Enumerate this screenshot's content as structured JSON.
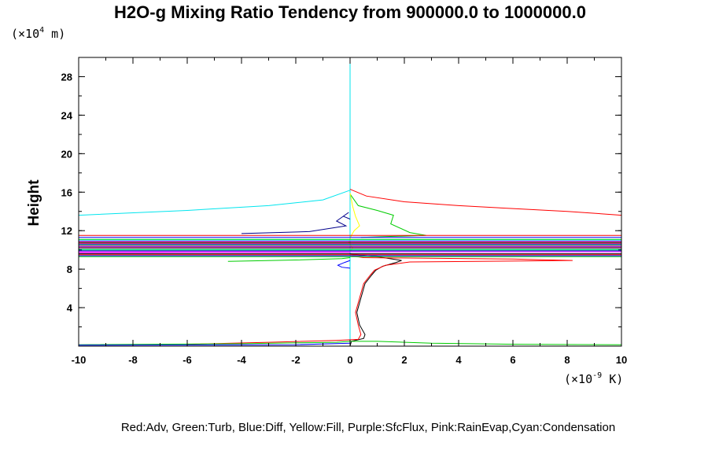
{
  "chart_data": {
    "type": "line",
    "title": "H2O-g Mixing Ratio Tendency from 900000.0 to 1000000.0",
    "ylabel": "Height",
    "y_unit": {
      "prefix": "(×10",
      "exp": "4",
      "suffix": " m)"
    },
    "x_unit": {
      "prefix": "(×10",
      "exp": "-9",
      "suffix": " K)"
    },
    "xlim": [
      -10,
      10
    ],
    "ylim": [
      0,
      30
    ],
    "x_ticks": [
      -10,
      -8,
      -6,
      -4,
      -2,
      0,
      2,
      4,
      6,
      8,
      10
    ],
    "y_ticks": [
      4,
      8,
      12,
      16,
      20,
      24,
      28
    ],
    "grid": false,
    "legend_text": "Red:Adv, Green:Turb, Blue:Diff, Yellow:Fill, Purple:SfcFlux, Pink:RainEvap,Cyan:Condensation",
    "series": [
      {
        "color": "#00e5ee",
        "points": [
          [
            -10,
            13.6
          ],
          [
            -6,
            14.1
          ],
          [
            -3,
            14.6
          ],
          [
            -1,
            15.2
          ],
          [
            0,
            16.2
          ],
          [
            0,
            30
          ],
          [
            0,
            0
          ]
        ]
      },
      {
        "color": "#000000",
        "points": [
          [
            0,
            0
          ],
          [
            0.05,
            0.5
          ],
          [
            0.5,
            0.8
          ],
          [
            0.55,
            1.2
          ],
          [
            0.35,
            2.2
          ],
          [
            0.25,
            3.5
          ],
          [
            0.4,
            5
          ],
          [
            0.55,
            6.5
          ],
          [
            0.8,
            7.4
          ],
          [
            0.95,
            7.9
          ],
          [
            1.2,
            8.3
          ],
          [
            1.7,
            8.7
          ],
          [
            1.9,
            8.9
          ],
          [
            1.0,
            9.3
          ],
          [
            0.3,
            9.5
          ],
          [
            0,
            9.6
          ]
        ]
      },
      {
        "color": "#ff0000",
        "points": [
          [
            -6,
            0.2
          ],
          [
            -3,
            0.4
          ],
          [
            -0.5,
            0.6
          ],
          [
            0.3,
            0.7
          ],
          [
            0.4,
            1.2
          ],
          [
            0.3,
            2.2
          ],
          [
            0.2,
            3.5
          ],
          [
            0.35,
            5
          ],
          [
            0.5,
            6.5
          ],
          [
            0.75,
            7.4
          ],
          [
            0.9,
            7.9
          ],
          [
            1.3,
            8.4
          ],
          [
            2.2,
            8.75
          ],
          [
            8.2,
            8.9
          ],
          [
            6,
            9.05
          ],
          [
            0.5,
            9.2
          ],
          [
            0,
            9.4
          ]
        ]
      },
      {
        "color": "#ff0000",
        "points": [
          [
            0,
            16.3
          ],
          [
            0.6,
            15.6
          ],
          [
            2,
            15
          ],
          [
            4,
            14.6
          ],
          [
            6,
            14.3
          ],
          [
            8,
            14
          ],
          [
            10,
            13.6
          ]
        ]
      },
      {
        "color": "#00cc00",
        "points": [
          [
            -10,
            0.15
          ],
          [
            -4,
            0.25
          ],
          [
            -0.5,
            0.4
          ],
          [
            0,
            0.5
          ],
          [
            1,
            0.5
          ],
          [
            3,
            0.3
          ],
          [
            6,
            0.2
          ],
          [
            10,
            0.15
          ]
        ]
      },
      {
        "color": "#00cc00",
        "points": [
          [
            -4.5,
            8.8
          ],
          [
            -2,
            8.95
          ],
          [
            -0.3,
            9.1
          ],
          [
            0,
            9.2
          ]
        ]
      },
      {
        "color": "#00cc00",
        "points": [
          [
            0,
            15.8
          ],
          [
            0.3,
            14.6
          ],
          [
            1,
            14.1
          ],
          [
            1.6,
            13.6
          ],
          [
            1.5,
            12.7
          ],
          [
            2.2,
            11.8
          ],
          [
            2.8,
            11.5
          ],
          [
            1.5,
            11.4
          ],
          [
            0.4,
            11.3
          ]
        ]
      },
      {
        "color": "#0000ff",
        "points": [
          [
            -10,
            0.1
          ],
          [
            -2,
            0.15
          ],
          [
            0,
            0.3
          ]
        ]
      },
      {
        "color": "#0000ff",
        "points": [
          [
            0,
            8.1
          ],
          [
            -0.3,
            8.2
          ],
          [
            -0.45,
            8.4
          ],
          [
            -0.2,
            8.7
          ],
          [
            0,
            8.9
          ]
        ]
      },
      {
        "color": "#00008b",
        "points": [
          [
            0,
            13.2
          ],
          [
            -0.25,
            13.5
          ],
          [
            -0.05,
            13.9
          ],
          [
            -0.5,
            13.0
          ],
          [
            -0.15,
            12.5
          ],
          [
            -1.5,
            11.9
          ],
          [
            -4,
            11.7
          ]
        ]
      },
      {
        "color": "#ffff00",
        "points": [
          [
            0,
            15.9
          ],
          [
            0.1,
            14.5
          ],
          [
            0.2,
            13.5
          ],
          [
            0.35,
            12.5
          ],
          [
            0.15,
            12
          ],
          [
            0.05,
            11.5
          ],
          [
            -0.05,
            10.8
          ],
          [
            0.1,
            10.2
          ],
          [
            0,
            9.8
          ]
        ]
      },
      {
        "color": "#ff00ff",
        "points": [
          [
            -10,
            9.7
          ],
          [
            -5,
            9.75
          ],
          [
            0,
            9.75
          ]
        ]
      },
      {
        "color": "#ff0000",
        "points": [
          [
            -10,
            11.5
          ],
          [
            10,
            11.5
          ]
        ]
      },
      {
        "color": "#0000ff",
        "points": [
          [
            -10,
            11.3
          ],
          [
            10,
            11.3
          ]
        ]
      },
      {
        "color": "#00cc00",
        "points": [
          [
            -10,
            11.1
          ],
          [
            10,
            11.1
          ]
        ]
      },
      {
        "color": "#00e5ee",
        "points": [
          [
            -10,
            11.0
          ],
          [
            10,
            11.0
          ]
        ]
      },
      {
        "color": "#ff00ff",
        "points": [
          [
            -10,
            10.9
          ],
          [
            10,
            10.9
          ]
        ]
      },
      {
        "color": "#000000",
        "points": [
          [
            -10,
            10.8
          ],
          [
            10,
            10.8
          ]
        ]
      },
      {
        "color": "#ff0000",
        "points": [
          [
            -10,
            10.7
          ],
          [
            10,
            10.7
          ]
        ]
      },
      {
        "color": "#0000ff",
        "points": [
          [
            -10,
            10.6
          ],
          [
            10,
            10.6
          ]
        ]
      },
      {
        "color": "#00cc00",
        "points": [
          [
            -10,
            10.5
          ],
          [
            10,
            10.5
          ]
        ]
      },
      {
        "color": "#ff00ff",
        "points": [
          [
            -10,
            10.4
          ],
          [
            10,
            10.4
          ]
        ]
      },
      {
        "color": "#000080",
        "points": [
          [
            -10,
            10.3
          ],
          [
            10,
            10.3
          ]
        ]
      },
      {
        "color": "#ff0000",
        "points": [
          [
            -10,
            10.2
          ],
          [
            10,
            10.2
          ]
        ]
      },
      {
        "color": "#00e5ee",
        "points": [
          [
            -10,
            10.1
          ],
          [
            10,
            10.1
          ]
        ]
      },
      {
        "color": "#00cc00",
        "points": [
          [
            -10,
            10.0
          ],
          [
            10,
            10.0
          ]
        ]
      },
      {
        "color": "#0000ff",
        "points": [
          [
            -10,
            9.9
          ],
          [
            10,
            9.9
          ]
        ]
      },
      {
        "color": "#ff00ff",
        "points": [
          [
            -10,
            9.8
          ],
          [
            10,
            9.8
          ]
        ]
      },
      {
        "color": "#000000",
        "points": [
          [
            -10,
            9.6
          ],
          [
            10,
            9.6
          ]
        ]
      },
      {
        "color": "#ff0000",
        "points": [
          [
            -10,
            9.5
          ],
          [
            10,
            9.5
          ]
        ]
      },
      {
        "color": "#0000ff",
        "points": [
          [
            -10,
            9.4
          ],
          [
            10,
            9.4
          ]
        ]
      },
      {
        "color": "#00cc00",
        "points": [
          [
            -10,
            9.3
          ],
          [
            10,
            9.3
          ]
        ]
      }
    ]
  }
}
